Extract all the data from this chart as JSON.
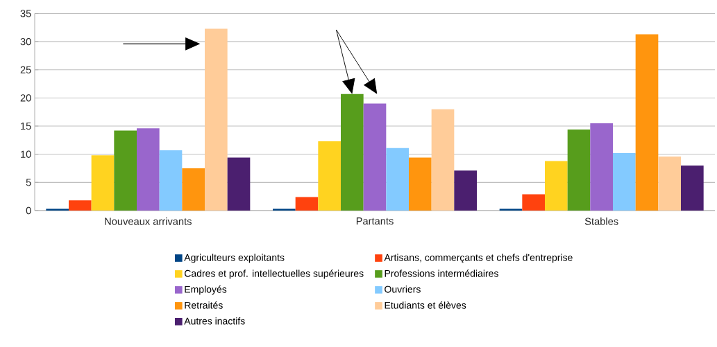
{
  "chart_data": {
    "type": "bar",
    "categories": [
      "Nouveaux arrivants",
      "Partants",
      "Stables"
    ],
    "series": [
      {
        "name": "Agriculteurs exploitants",
        "color": "#004586",
        "values": [
          0.3,
          0.3,
          0.3
        ]
      },
      {
        "name": "Artisans, commerçants et chefs d'entreprise",
        "color": "#ff420e",
        "values": [
          1.8,
          2.4,
          2.9
        ]
      },
      {
        "name": "Cadres et prof. intellectuelles supérieures",
        "color": "#ffd320",
        "values": [
          9.8,
          12.3,
          8.8
        ]
      },
      {
        "name": "Professions intermédiaires",
        "color": "#579d1c",
        "values": [
          14.2,
          20.7,
          14.4
        ]
      },
      {
        "name": "Employés",
        "color": "#9966cc",
        "values": [
          14.6,
          19.0,
          15.5
        ]
      },
      {
        "name": "Ouvriers",
        "color": "#83caff",
        "values": [
          10.7,
          11.1,
          10.2
        ]
      },
      {
        "name": "Retraités",
        "color": "#ff950e",
        "values": [
          7.5,
          9.4,
          31.3
        ]
      },
      {
        "name": "Etudiants et élèves",
        "color": "#ffcc99",
        "values": [
          32.3,
          18.0,
          9.6
        ]
      },
      {
        "name": "Autres inactifs",
        "color": "#4b1f6f",
        "values": [
          9.4,
          7.1,
          8.0
        ]
      }
    ],
    "ylim": [
      0,
      35
    ],
    "yticks": [
      0,
      5,
      10,
      15,
      20,
      25,
      30,
      35
    ],
    "grid": "y",
    "legend": "bottom"
  }
}
